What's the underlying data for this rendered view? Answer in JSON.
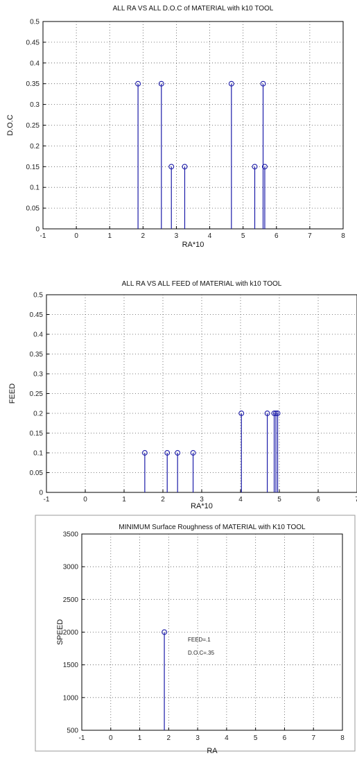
{
  "chart_data": [
    {
      "type": "stem",
      "title": "ALL RA VS ALL D.O.C of MATERIAL with k10 TOOL",
      "xlabel": "RA*10",
      "ylabel": "D.O.C",
      "xlim": [
        -1,
        8
      ],
      "ylim": [
        0,
        0.5
      ],
      "xticks": [
        "-1",
        "0",
        "1",
        "2",
        "3",
        "4",
        "5",
        "6",
        "7",
        "8"
      ],
      "yticks": [
        "0",
        "0.05",
        "0.1",
        "0.15",
        "0.2",
        "0.25",
        "0.3",
        "0.35",
        "0.4",
        "0.45",
        "0.5"
      ],
      "grid": true,
      "color": "#1a1aa8",
      "x": [
        1.85,
        2.55,
        2.85,
        3.25,
        4.65,
        5.35,
        5.6,
        5.65
      ],
      "y": [
        0.35,
        0.35,
        0.15,
        0.15,
        0.35,
        0.15,
        0.35,
        0.15
      ]
    },
    {
      "type": "stem",
      "title": "ALL RA VS ALL FEED of MATERIAL with k10 TOOL",
      "xlabel": "RA*10",
      "ylabel": "FEED",
      "xlim": [
        -1,
        8
      ],
      "ylim": [
        0,
        0.5
      ],
      "xticks": [
        "-1",
        "0",
        "1",
        "2",
        "3",
        "4",
        "5",
        "6",
        "7"
      ],
      "yticks": [
        "0",
        "0.05",
        "0.1",
        "0.15",
        "0.2",
        "0.25",
        "0.3",
        "0.35",
        "0.4",
        "0.45",
        "0.5"
      ],
      "grid": true,
      "color": "#1a1aa8",
      "x": [
        1.85,
        2.5,
        2.8,
        3.25,
        4.65,
        5.4,
        5.6,
        5.65,
        5.7
      ],
      "y": [
        0.1,
        0.1,
        0.1,
        0.1,
        0.2,
        0.2,
        0.2,
        0.2,
        0.2
      ]
    },
    {
      "type": "stem",
      "title": "MINIMUM Surface Roughness of MATERIAL with K10 TOOL",
      "xlabel": "RA",
      "ylabel": "SPEED",
      "xlim": [
        -1,
        8
      ],
      "ylim": [
        500,
        3500
      ],
      "xticks": [
        "-1",
        "0",
        "1",
        "2",
        "3",
        "4",
        "5",
        "6",
        "7",
        "8"
      ],
      "yticks": [
        "500",
        "1000",
        "1500",
        "2000",
        "2500",
        "3000",
        "3500"
      ],
      "grid": true,
      "color": "#1a1aa8",
      "x": [
        1.85
      ],
      "y": [
        2000
      ],
      "annotations": [
        "FEED=.1",
        "D.O.C=.35"
      ]
    }
  ]
}
